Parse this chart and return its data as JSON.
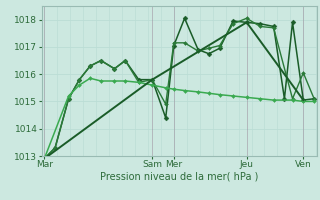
{
  "xlabel": "Pression niveau de la mer( hPa )",
  "background_color": "#cce8e0",
  "grid_major_color": "#aaccC4",
  "grid_minor_color": "#bbddd5",
  "text_color": "#2d6b3a",
  "spine_color": "#99bbb3",
  "ylim": [
    1013,
    1018.5
  ],
  "yticks": [
    1013,
    1014,
    1015,
    1016,
    1017,
    1018
  ],
  "day_labels": [
    "Mar",
    "Sam",
    "Mer",
    "Jeu",
    "Ven"
  ],
  "day_positions": [
    0.0,
    4.0,
    4.8,
    7.5,
    9.6
  ],
  "vline_color": "#998899",
  "lines": [
    {
      "x": [
        0.0,
        0.4,
        0.9,
        1.3,
        1.7,
        2.1,
        2.6,
        3.0,
        3.5,
        4.0,
        4.5,
        4.8,
        5.2,
        5.7,
        6.1,
        6.5,
        7.0,
        7.5,
        8.0,
        8.5,
        8.9,
        9.2,
        9.6,
        10.0
      ],
      "y": [
        1012.9,
        1013.3,
        1015.1,
        1015.8,
        1016.3,
        1016.5,
        1016.2,
        1016.5,
        1015.8,
        1015.8,
        1014.4,
        1017.05,
        1018.05,
        1016.9,
        1016.75,
        1016.95,
        1017.95,
        1017.9,
        1017.85,
        1017.75,
        1015.1,
        1017.9,
        1015.05,
        1015.1
      ],
      "color": "#1a5c28",
      "lw": 1.1,
      "marker": "D",
      "ms": 2.5
    },
    {
      "x": [
        0.0,
        0.4,
        0.9,
        1.3,
        1.7,
        2.1,
        2.6,
        3.0,
        3.5,
        4.0,
        4.5,
        4.8,
        5.2,
        5.7,
        6.1,
        6.5,
        7.0,
        7.5,
        8.0,
        8.5,
        9.2,
        9.6,
        10.0
      ],
      "y": [
        1012.9,
        1013.3,
        1015.1,
        1015.8,
        1016.3,
        1016.5,
        1016.2,
        1016.5,
        1015.7,
        1015.8,
        1014.9,
        1017.15,
        1017.15,
        1016.85,
        1016.95,
        1017.05,
        1017.85,
        1018.05,
        1017.75,
        1017.7,
        1015.1,
        1016.05,
        1015.1
      ],
      "color": "#2a7a38",
      "lw": 1.0,
      "marker": "D",
      "ms": 2.0
    },
    {
      "x": [
        0.0,
        0.9,
        1.3,
        1.7,
        2.1,
        2.6,
        3.0,
        3.5,
        4.0,
        4.5,
        4.8,
        5.2,
        5.7,
        6.1,
        6.5,
        7.0,
        7.5,
        8.0,
        8.5,
        9.2,
        9.6,
        10.0
      ],
      "y": [
        1012.9,
        1015.2,
        1015.6,
        1015.85,
        1015.75,
        1015.75,
        1015.75,
        1015.7,
        1015.6,
        1015.5,
        1015.45,
        1015.4,
        1015.35,
        1015.3,
        1015.25,
        1015.2,
        1015.15,
        1015.1,
        1015.05,
        1015.05,
        1015.0,
        1015.0
      ],
      "color": "#3aaa50",
      "lw": 1.1,
      "marker": "D",
      "ms": 2.0
    },
    {
      "x": [
        0.0,
        4.0,
        7.5,
        9.6
      ],
      "y": [
        1012.9,
        1015.8,
        1017.9,
        1015.05
      ],
      "color": "#1a5c28",
      "lw": 1.4,
      "marker": null,
      "ms": 0
    }
  ]
}
